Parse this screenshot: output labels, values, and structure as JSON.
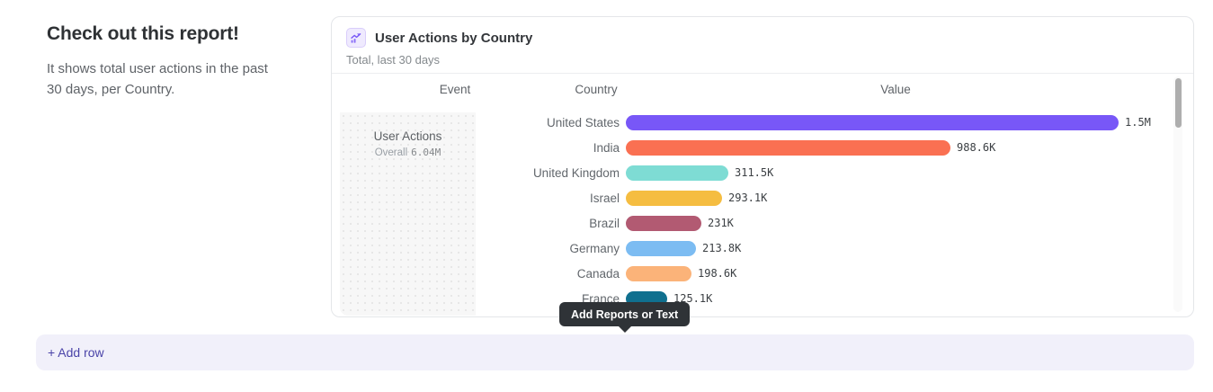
{
  "page": {
    "heading": "Check out this report!",
    "description": "It shows total user actions in the past 30 days, per Country."
  },
  "report_card": {
    "title": "User Actions by Country",
    "subtitle": "Total, last 30 days",
    "columns": [
      "Event",
      "Country",
      "Value"
    ],
    "event": {
      "name": "User Actions",
      "overall_label": "Overall",
      "overall_value": "6.04M"
    }
  },
  "chart_data": {
    "type": "bar",
    "orientation": "horizontal",
    "title": "User Actions by Country",
    "subtitle": "Total, last 30 days",
    "categories": [
      "United States",
      "India",
      "United Kingdom",
      "Israel",
      "Brazil",
      "Germany",
      "Canada",
      "France"
    ],
    "values": [
      1500000,
      988600,
      311500,
      293100,
      231000,
      213800,
      198600,
      125100
    ],
    "value_labels": [
      "1.5M",
      "988.6K",
      "311.5K",
      "293.1K",
      "231K",
      "213.8K",
      "198.6K",
      "125.1K"
    ],
    "bar_colors": [
      "#7857f7",
      "#fa7052",
      "#7edcd4",
      "#f5bd41",
      "#b25a72",
      "#7cbcf2",
      "#fbb379",
      "#10708f"
    ],
    "max_value": 1500000,
    "series_name": "User Actions",
    "series_total": "6.04M"
  },
  "tooltip": {
    "text": "Add Reports or Text"
  },
  "footer": {
    "add_row_label": "+ Add row"
  },
  "colors": {
    "accent_purple": "#7857f7",
    "footer_bg": "#f1f0fa",
    "footer_text": "#4a43a8",
    "tooltip_bg": "#2f3337"
  }
}
